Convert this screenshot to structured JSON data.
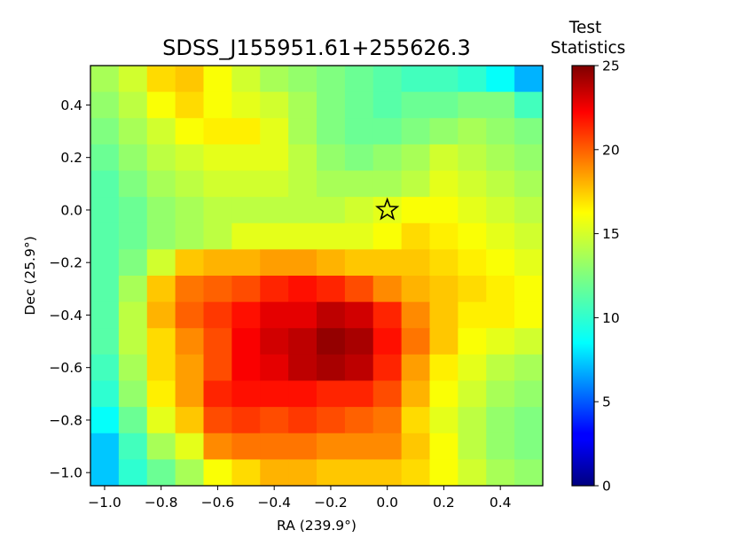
{
  "chart_data": {
    "type": "heatmap",
    "title": "SDSS_J155951.61+255626.3",
    "xlabel": "RA (239.9°)",
    "ylabel": "Dec (25.9°)",
    "xlim": [
      -1.05,
      0.55
    ],
    "ylim": [
      -1.05,
      0.55
    ],
    "cell_size": 0.1,
    "x_ticks": [
      -1.0,
      -0.8,
      -0.6,
      -0.4,
      -0.2,
      0.0,
      0.2,
      0.4
    ],
    "x_tick_labels": [
      "−1.0",
      "−0.8",
      "−0.6",
      "−0.4",
      "−0.2",
      "0.0",
      "0.2",
      "0.4"
    ],
    "y_ticks": [
      -1.0,
      -0.8,
      -0.6,
      -0.4,
      -0.2,
      0.0,
      0.2,
      0.4
    ],
    "y_tick_labels": [
      "−1.0",
      "−0.8",
      "−0.6",
      "−0.4",
      "−0.2",
      "0.0",
      "0.2",
      "0.4"
    ],
    "colormap": "jet",
    "colorbar": {
      "title_lines": [
        "Test",
        "Statistics"
      ],
      "vmin": 0,
      "vmax": 25,
      "ticks": [
        0,
        5,
        10,
        15,
        20,
        25
      ],
      "tick_labels": [
        "0",
        "5",
        "10",
        "15",
        "20",
        "25"
      ]
    },
    "marker": {
      "symbol": "star",
      "x": 0.0,
      "y": 0.0
    },
    "grid": false,
    "row_centers_dec": [
      0.5,
      0.4,
      0.3,
      0.2,
      0.1,
      0.0,
      -0.1,
      -0.2,
      -0.3,
      -0.4,
      -0.5,
      -0.6,
      -0.7,
      -0.8,
      -0.9,
      -1.0
    ],
    "col_centers_ra": [
      -1.0,
      -0.9,
      -0.8,
      -0.7,
      -0.6,
      -0.5,
      -0.4,
      -0.3,
      -0.2,
      -0.1,
      0.0,
      0.1,
      0.2,
      0.3,
      0.4,
      0.5
    ],
    "values": [
      [
        13.5,
        14.5,
        16.5,
        17.0,
        15.5,
        14.5,
        13.5,
        13.0,
        12.5,
        12.0,
        11.5,
        11.0,
        11.0,
        10.5,
        9.5,
        7.5
      ],
      [
        13.0,
        14.0,
        15.5,
        16.5,
        15.5,
        15.0,
        14.5,
        13.5,
        12.5,
        12.0,
        11.5,
        12.0,
        12.0,
        12.5,
        12.5,
        11.0
      ],
      [
        12.5,
        13.5,
        14.5,
        15.5,
        16.0,
        16.0,
        15.0,
        13.5,
        12.5,
        12.0,
        12.0,
        12.5,
        13.0,
        13.5,
        13.0,
        12.5
      ],
      [
        12.0,
        13.0,
        14.0,
        14.5,
        15.0,
        15.0,
        15.0,
        14.0,
        13.0,
        12.5,
        13.0,
        13.5,
        14.5,
        14.0,
        13.5,
        13.0
      ],
      [
        11.5,
        12.5,
        13.5,
        14.0,
        14.5,
        14.5,
        14.5,
        14.0,
        13.5,
        13.5,
        13.5,
        14.0,
        15.0,
        14.5,
        14.0,
        13.5
      ],
      [
        11.5,
        12.0,
        13.0,
        13.5,
        14.0,
        14.0,
        14.0,
        14.0,
        14.0,
        14.5,
        15.0,
        15.5,
        15.5,
        15.0,
        14.5,
        14.0
      ],
      [
        11.5,
        12.0,
        13.0,
        13.5,
        14.0,
        15.0,
        15.0,
        15.0,
        15.0,
        15.0,
        15.5,
        16.5,
        16.0,
        15.5,
        15.0,
        14.5
      ],
      [
        11.5,
        12.5,
        14.5,
        17.0,
        17.5,
        17.5,
        18.0,
        18.0,
        17.5,
        17.0,
        17.0,
        17.0,
        16.5,
        16.0,
        15.5,
        15.0
      ],
      [
        11.5,
        13.5,
        17.0,
        19.0,
        19.5,
        20.0,
        21.0,
        21.5,
        21.0,
        20.0,
        18.5,
        17.5,
        17.0,
        16.5,
        16.0,
        15.5
      ],
      [
        11.5,
        14.0,
        17.5,
        19.5,
        20.5,
        21.5,
        22.5,
        22.5,
        23.5,
        23.0,
        21.0,
        18.5,
        17.0,
        16.0,
        16.0,
        15.5
      ],
      [
        11.5,
        14.0,
        16.5,
        18.5,
        20.0,
        22.0,
        23.0,
        23.5,
        24.5,
        24.0,
        21.5,
        19.0,
        17.0,
        15.5,
        15.0,
        14.5
      ],
      [
        11.0,
        13.5,
        16.5,
        18.0,
        20.0,
        22.0,
        22.5,
        23.5,
        24.0,
        23.5,
        21.0,
        18.0,
        16.0,
        15.0,
        14.0,
        13.5
      ],
      [
        10.5,
        13.0,
        16.0,
        18.0,
        21.0,
        21.5,
        21.5,
        21.5,
        21.0,
        21.0,
        20.0,
        17.5,
        15.5,
        14.5,
        13.5,
        13.0
      ],
      [
        9.5,
        12.0,
        15.0,
        17.0,
        20.0,
        20.5,
        20.0,
        20.5,
        20.0,
        19.5,
        19.0,
        16.5,
        15.0,
        14.0,
        13.0,
        12.5
      ],
      [
        8.0,
        11.0,
        13.5,
        15.0,
        18.5,
        19.0,
        19.0,
        19.0,
        18.5,
        18.5,
        18.5,
        17.0,
        15.5,
        14.0,
        13.0,
        12.5
      ],
      [
        8.0,
        10.5,
        12.0,
        13.5,
        15.5,
        16.5,
        17.5,
        17.5,
        17.0,
        17.0,
        17.0,
        16.5,
        15.5,
        14.5,
        13.5,
        13.0
      ]
    ]
  }
}
